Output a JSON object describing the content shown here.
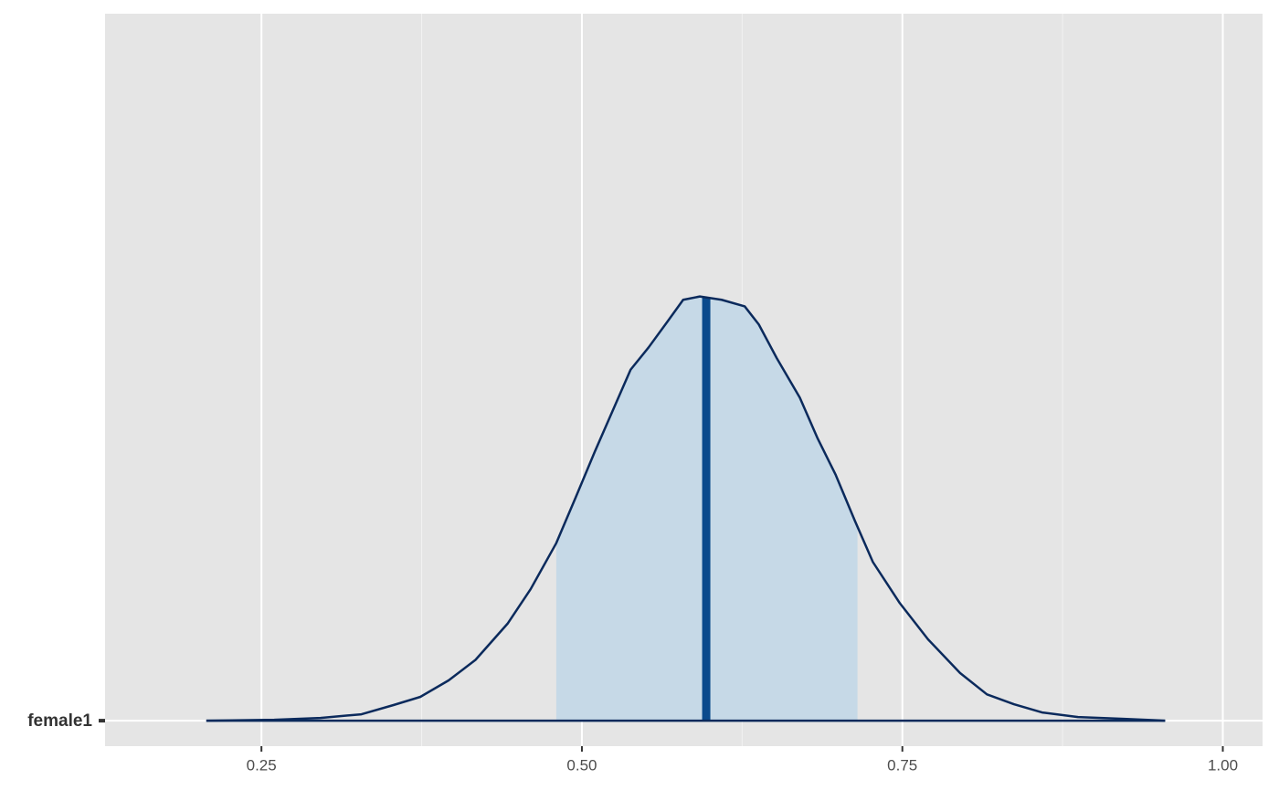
{
  "chart_data": {
    "type": "area",
    "categories": [
      "female1"
    ],
    "x": [
      0.207,
      0.26,
      0.296,
      0.328,
      0.353,
      0.374,
      0.396,
      0.417,
      0.442,
      0.46,
      0.48,
      0.495,
      0.51,
      0.524,
      0.538,
      0.552,
      0.567,
      0.579,
      0.592,
      0.609,
      0.627,
      0.638,
      0.652,
      0.67,
      0.684,
      0.698,
      0.713,
      0.727,
      0.748,
      0.77,
      0.795,
      0.816,
      0.837,
      0.859,
      0.887,
      0.923,
      0.955
    ],
    "values": [
      0,
      0.011,
      0.033,
      0.078,
      0.19,
      0.29,
      0.49,
      0.74,
      1.18,
      1.6,
      2.16,
      2.71,
      3.27,
      3.77,
      4.27,
      4.54,
      4.86,
      5.12,
      5.16,
      5.12,
      5.04,
      4.82,
      4.41,
      3.93,
      3.43,
      2.99,
      2.43,
      1.93,
      1.43,
      0.99,
      0.58,
      0.32,
      0.2,
      0.1,
      0.044,
      0.022,
      0
    ],
    "interval": [
      0.48,
      0.715
    ],
    "median": 0.597,
    "line_color": "#0b2a5c",
    "fill_color": "#c6d9e7",
    "median_color": "#0a4a8c",
    "xlim": [
      0.128,
      1.031
    ],
    "ylim": [
      -0.31,
      8.6
    ],
    "xticks": [
      {
        "value": 0.25,
        "label": "0.25"
      },
      {
        "value": 0.5,
        "label": "0.50"
      },
      {
        "value": 0.75,
        "label": "0.75"
      },
      {
        "value": 1.0,
        "label": "1.00"
      }
    ],
    "minor_xticks": [
      0.375,
      0.625,
      0.875
    ],
    "grid": true
  }
}
